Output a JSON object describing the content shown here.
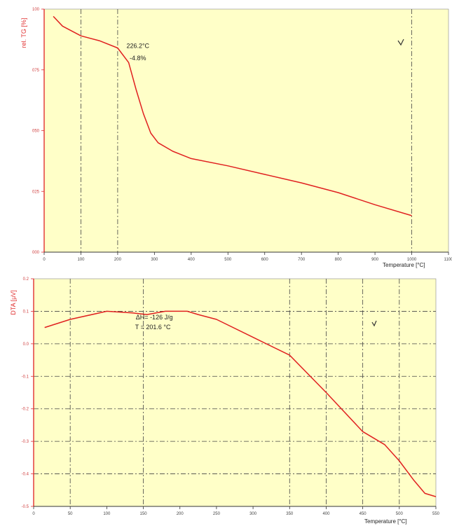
{
  "colors": {
    "plot_bg": "#ffffc8",
    "curve": "#e02020",
    "axis_left": "#e03030",
    "grid": "#444444"
  },
  "chart_data": [
    {
      "type": "line",
      "title": "",
      "ylabel": "rel. TG [%]",
      "xlabel": "Temperature [°C]",
      "xlim": [
        0,
        1100
      ],
      "ylim": [
        0,
        100
      ],
      "x_ticks": [
        0,
        100,
        200,
        300,
        400,
        500,
        600,
        700,
        800,
        900,
        1000,
        1100
      ],
      "y_ticks": [
        0,
        25,
        50,
        75,
        100
      ],
      "y_tick_labels": [
        "000",
        "025",
        "050",
        "075",
        "100"
      ],
      "vlines": [
        100,
        200,
        1000
      ],
      "annotations": [
        {
          "text": "226.2°C",
          "x": 255,
          "y": 84
        },
        {
          "text": "-4.8%",
          "x": 255,
          "y": 79
        }
      ],
      "series": [
        {
          "x": [
            25,
            50,
            100,
            150,
            200,
            230,
            250,
            270,
            290,
            310,
            350,
            400,
            500,
            600,
            700,
            800,
            900,
            1000
          ],
          "y": [
            97,
            93,
            89,
            87,
            84,
            78,
            67,
            57,
            49,
            45,
            41.5,
            38.5,
            35.5,
            32,
            28.5,
            24.5,
            19.5,
            15
          ]
        }
      ]
    },
    {
      "type": "line",
      "title": "",
      "ylabel": "DTA [μV]",
      "xlabel": "Temperature [°C]",
      "xlim": [
        0,
        550
      ],
      "ylim": [
        -0.5,
        0.2
      ],
      "x_ticks": [
        0,
        50,
        100,
        150,
        200,
        250,
        300,
        350,
        400,
        450,
        500,
        550
      ],
      "y_ticks": [
        -0.5,
        -0.4,
        -0.3,
        -0.2,
        -0.1,
        0.0,
        0.1,
        0.2
      ],
      "y_tick_labels": [
        "-0.5",
        "-0.4",
        "-0.3",
        "-0.2",
        "-0.1",
        "0.0",
        "0.1",
        "0.2"
      ],
      "hlines": [
        0.1,
        0.0,
        -0.1,
        -0.2,
        -0.3,
        -0.4
      ],
      "vlines": [
        50,
        150,
        350,
        400,
        450,
        500
      ],
      "annotations": [
        {
          "text": "ΔH= -126 J/g",
          "x": 165,
          "y": 0.075
        },
        {
          "text": "T = 201.6 °C",
          "x": 163,
          "y": 0.045
        }
      ],
      "series": [
        {
          "x": [
            15,
            50,
            100,
            135,
            155,
            180,
            200,
            210,
            225,
            250,
            300,
            350,
            400,
            450,
            480,
            500,
            520,
            535,
            550
          ],
          "y": [
            0.05,
            0.075,
            0.1,
            0.095,
            0.09,
            0.1,
            0.1,
            0.1,
            0.09,
            0.075,
            0.02,
            -0.035,
            -0.15,
            -0.27,
            -0.31,
            -0.36,
            -0.42,
            -0.46,
            -0.47
          ]
        }
      ]
    }
  ]
}
